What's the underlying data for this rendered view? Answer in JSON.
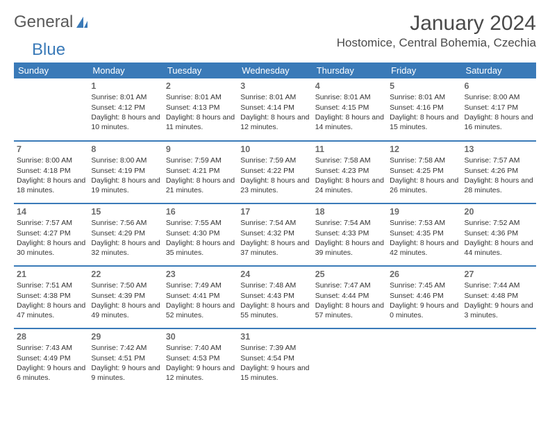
{
  "brand": {
    "general": "General",
    "blue": "Blue"
  },
  "header": {
    "title": "January 2024",
    "location": "Hostomice, Central Bohemia, Czechia"
  },
  "colors": {
    "accent": "#3a7ab8",
    "header_text": "#ffffff",
    "body_text": "#333333",
    "muted_text": "#6b6b6b",
    "background": "#ffffff"
  },
  "weekdays": [
    "Sunday",
    "Monday",
    "Tuesday",
    "Wednesday",
    "Thursday",
    "Friday",
    "Saturday"
  ],
  "weeks": [
    [
      {
        "n": "",
        "sr": "",
        "ss": "",
        "dl": ""
      },
      {
        "n": "1",
        "sr": "Sunrise: 8:01 AM",
        "ss": "Sunset: 4:12 PM",
        "dl": "Daylight: 8 hours and 10 minutes."
      },
      {
        "n": "2",
        "sr": "Sunrise: 8:01 AM",
        "ss": "Sunset: 4:13 PM",
        "dl": "Daylight: 8 hours and 11 minutes."
      },
      {
        "n": "3",
        "sr": "Sunrise: 8:01 AM",
        "ss": "Sunset: 4:14 PM",
        "dl": "Daylight: 8 hours and 12 minutes."
      },
      {
        "n": "4",
        "sr": "Sunrise: 8:01 AM",
        "ss": "Sunset: 4:15 PM",
        "dl": "Daylight: 8 hours and 14 minutes."
      },
      {
        "n": "5",
        "sr": "Sunrise: 8:01 AM",
        "ss": "Sunset: 4:16 PM",
        "dl": "Daylight: 8 hours and 15 minutes."
      },
      {
        "n": "6",
        "sr": "Sunrise: 8:00 AM",
        "ss": "Sunset: 4:17 PM",
        "dl": "Daylight: 8 hours and 16 minutes."
      }
    ],
    [
      {
        "n": "7",
        "sr": "Sunrise: 8:00 AM",
        "ss": "Sunset: 4:18 PM",
        "dl": "Daylight: 8 hours and 18 minutes."
      },
      {
        "n": "8",
        "sr": "Sunrise: 8:00 AM",
        "ss": "Sunset: 4:19 PM",
        "dl": "Daylight: 8 hours and 19 minutes."
      },
      {
        "n": "9",
        "sr": "Sunrise: 7:59 AM",
        "ss": "Sunset: 4:21 PM",
        "dl": "Daylight: 8 hours and 21 minutes."
      },
      {
        "n": "10",
        "sr": "Sunrise: 7:59 AM",
        "ss": "Sunset: 4:22 PM",
        "dl": "Daylight: 8 hours and 23 minutes."
      },
      {
        "n": "11",
        "sr": "Sunrise: 7:58 AM",
        "ss": "Sunset: 4:23 PM",
        "dl": "Daylight: 8 hours and 24 minutes."
      },
      {
        "n": "12",
        "sr": "Sunrise: 7:58 AM",
        "ss": "Sunset: 4:25 PM",
        "dl": "Daylight: 8 hours and 26 minutes."
      },
      {
        "n": "13",
        "sr": "Sunrise: 7:57 AM",
        "ss": "Sunset: 4:26 PM",
        "dl": "Daylight: 8 hours and 28 minutes."
      }
    ],
    [
      {
        "n": "14",
        "sr": "Sunrise: 7:57 AM",
        "ss": "Sunset: 4:27 PM",
        "dl": "Daylight: 8 hours and 30 minutes."
      },
      {
        "n": "15",
        "sr": "Sunrise: 7:56 AM",
        "ss": "Sunset: 4:29 PM",
        "dl": "Daylight: 8 hours and 32 minutes."
      },
      {
        "n": "16",
        "sr": "Sunrise: 7:55 AM",
        "ss": "Sunset: 4:30 PM",
        "dl": "Daylight: 8 hours and 35 minutes."
      },
      {
        "n": "17",
        "sr": "Sunrise: 7:54 AM",
        "ss": "Sunset: 4:32 PM",
        "dl": "Daylight: 8 hours and 37 minutes."
      },
      {
        "n": "18",
        "sr": "Sunrise: 7:54 AM",
        "ss": "Sunset: 4:33 PM",
        "dl": "Daylight: 8 hours and 39 minutes."
      },
      {
        "n": "19",
        "sr": "Sunrise: 7:53 AM",
        "ss": "Sunset: 4:35 PM",
        "dl": "Daylight: 8 hours and 42 minutes."
      },
      {
        "n": "20",
        "sr": "Sunrise: 7:52 AM",
        "ss": "Sunset: 4:36 PM",
        "dl": "Daylight: 8 hours and 44 minutes."
      }
    ],
    [
      {
        "n": "21",
        "sr": "Sunrise: 7:51 AM",
        "ss": "Sunset: 4:38 PM",
        "dl": "Daylight: 8 hours and 47 minutes."
      },
      {
        "n": "22",
        "sr": "Sunrise: 7:50 AM",
        "ss": "Sunset: 4:39 PM",
        "dl": "Daylight: 8 hours and 49 minutes."
      },
      {
        "n": "23",
        "sr": "Sunrise: 7:49 AM",
        "ss": "Sunset: 4:41 PM",
        "dl": "Daylight: 8 hours and 52 minutes."
      },
      {
        "n": "24",
        "sr": "Sunrise: 7:48 AM",
        "ss": "Sunset: 4:43 PM",
        "dl": "Daylight: 8 hours and 55 minutes."
      },
      {
        "n": "25",
        "sr": "Sunrise: 7:47 AM",
        "ss": "Sunset: 4:44 PM",
        "dl": "Daylight: 8 hours and 57 minutes."
      },
      {
        "n": "26",
        "sr": "Sunrise: 7:45 AM",
        "ss": "Sunset: 4:46 PM",
        "dl": "Daylight: 9 hours and 0 minutes."
      },
      {
        "n": "27",
        "sr": "Sunrise: 7:44 AM",
        "ss": "Sunset: 4:48 PM",
        "dl": "Daylight: 9 hours and 3 minutes."
      }
    ],
    [
      {
        "n": "28",
        "sr": "Sunrise: 7:43 AM",
        "ss": "Sunset: 4:49 PM",
        "dl": "Daylight: 9 hours and 6 minutes."
      },
      {
        "n": "29",
        "sr": "Sunrise: 7:42 AM",
        "ss": "Sunset: 4:51 PM",
        "dl": "Daylight: 9 hours and 9 minutes."
      },
      {
        "n": "30",
        "sr": "Sunrise: 7:40 AM",
        "ss": "Sunset: 4:53 PM",
        "dl": "Daylight: 9 hours and 12 minutes."
      },
      {
        "n": "31",
        "sr": "Sunrise: 7:39 AM",
        "ss": "Sunset: 4:54 PM",
        "dl": "Daylight: 9 hours and 15 minutes."
      },
      {
        "n": "",
        "sr": "",
        "ss": "",
        "dl": ""
      },
      {
        "n": "",
        "sr": "",
        "ss": "",
        "dl": ""
      },
      {
        "n": "",
        "sr": "",
        "ss": "",
        "dl": ""
      }
    ]
  ]
}
